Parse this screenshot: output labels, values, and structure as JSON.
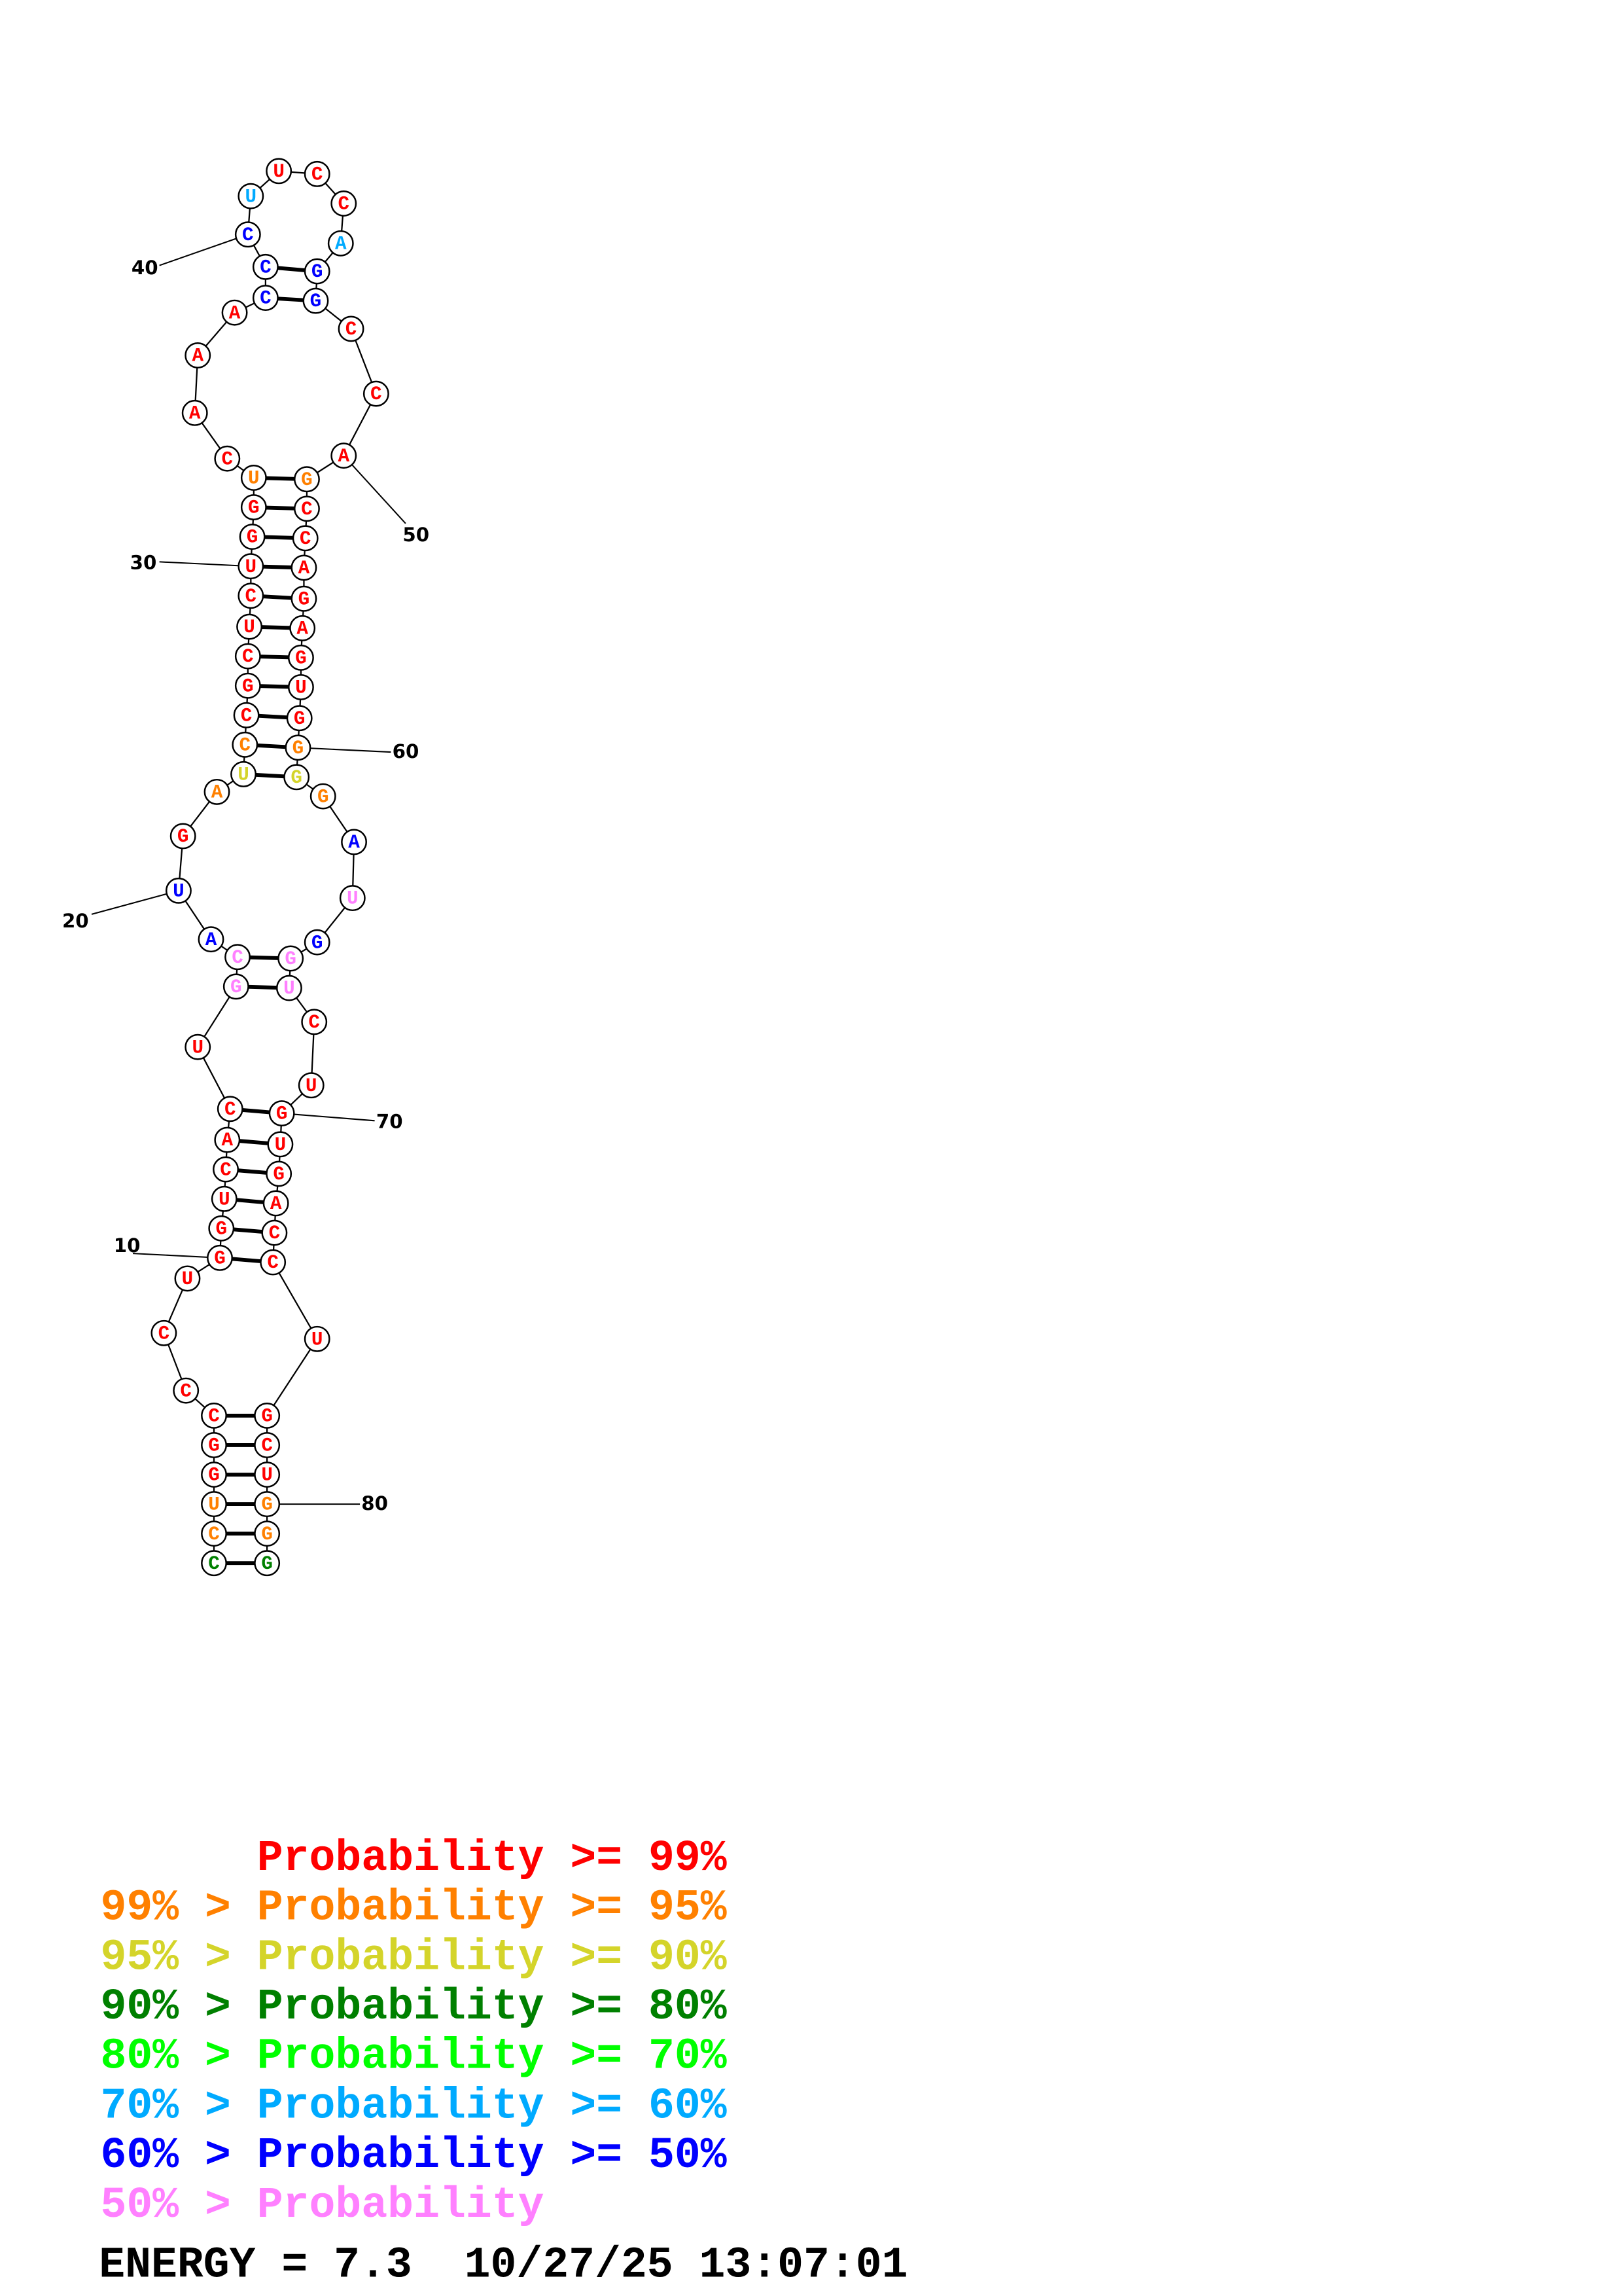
{
  "structure": {
    "sequence": "CCUGGCCCUGGUCACUGCAUGAUCCGCUCUGGUCAAACCCUUCCAGGCCAGCCAGAGUGGGGAUGGUCUGUGACCUGCUGGG",
    "probability_tier": [
      3,
      1,
      1,
      0,
      0,
      0,
      0,
      0,
      0,
      0,
      0,
      0,
      0,
      0,
      0,
      0,
      7,
      7,
      6,
      6,
      0,
      1,
      2,
      1,
      0,
      0,
      0,
      0,
      0,
      0,
      0,
      0,
      1,
      0,
      0,
      0,
      0,
      6,
      6,
      6,
      5,
      0,
      0,
      0,
      5,
      6,
      6,
      0,
      0,
      0,
      1,
      0,
      0,
      0,
      0,
      0,
      0,
      0,
      0,
      1,
      2,
      1,
      6,
      7,
      6,
      7,
      7,
      0,
      0,
      0,
      0,
      0,
      0,
      0,
      0,
      0,
      0,
      0,
      0,
      1,
      1,
      3
    ],
    "pairs": [
      [
        1,
        82
      ],
      [
        2,
        81
      ],
      [
        3,
        80
      ],
      [
        4,
        79
      ],
      [
        5,
        78
      ],
      [
        6,
        77
      ],
      [
        10,
        75
      ],
      [
        11,
        74
      ],
      [
        12,
        73
      ],
      [
        13,
        72
      ],
      [
        14,
        71
      ],
      [
        15,
        70
      ],
      [
        17,
        67
      ],
      [
        18,
        66
      ],
      [
        23,
        61
      ],
      [
        24,
        60
      ],
      [
        25,
        59
      ],
      [
        26,
        58
      ],
      [
        27,
        57
      ],
      [
        28,
        56
      ],
      [
        29,
        55
      ],
      [
        30,
        54
      ],
      [
        31,
        53
      ],
      [
        32,
        52
      ],
      [
        33,
        51
      ],
      [
        38,
        47
      ],
      [
        39,
        46
      ]
    ],
    "position_labels": [
      {
        "text": "10",
        "pos": 10
      },
      {
        "text": "20",
        "pos": 20
      },
      {
        "text": "30",
        "pos": 30
      },
      {
        "text": "40",
        "pos": 40
      },
      {
        "text": "50",
        "pos": 50
      },
      {
        "text": "60",
        "pos": 60
      },
      {
        "text": "70",
        "pos": 70
      },
      {
        "text": "80",
        "pos": 80
      }
    ]
  },
  "tier_colors": [
    "#ff0000",
    "#ff8000",
    "#d4d42a",
    "#008000",
    "#00ff00",
    "#00aaff",
    "#0000ff",
    "#ff80ff"
  ],
  "legend": {
    "lines": [
      {
        "text": "      Probability >= 99%",
        "tier": 0
      },
      {
        "text": "99% > Probability >= 95%",
        "tier": 1
      },
      {
        "text": "95% > Probability >= 90%",
        "tier": 2
      },
      {
        "text": "90% > Probability >= 80%",
        "tier": 3
      },
      {
        "text": "80% > Probability >= 70%",
        "tier": 4
      },
      {
        "text": "70% > Probability >= 60%",
        "tier": 5
      },
      {
        "text": "60% > Probability >= 50%",
        "tier": 6
      },
      {
        "text": "50% > Probability",
        "tier": 7
      }
    ],
    "energy_line": "ENERGY = 7.3  10/27/25 13:07:01"
  }
}
